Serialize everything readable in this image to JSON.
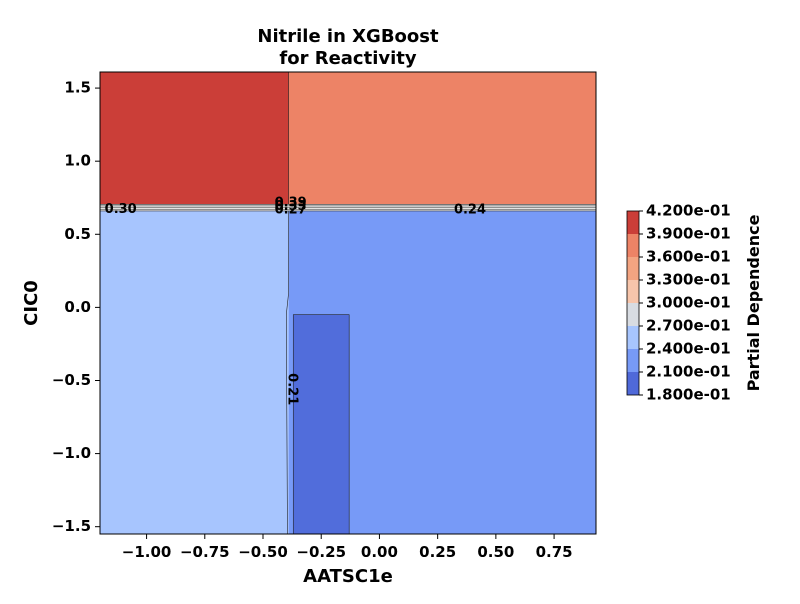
{
  "chart_data": {
    "type": "contour",
    "title_lines": [
      "Nitrile in XGBoost",
      "for Reactivity"
    ],
    "xlabel": "AATSC1e",
    "ylabel": "CIC0",
    "xlim": [
      -1.2,
      0.93
    ],
    "ylim": [
      -1.55,
      1.61
    ],
    "x_ticks": [
      {
        "value": -1.0,
        "label": "−1.00"
      },
      {
        "value": -0.75,
        "label": "−0.75"
      },
      {
        "value": -0.5,
        "label": "−0.50"
      },
      {
        "value": -0.25,
        "label": "−0.25"
      },
      {
        "value": 0.0,
        "label": "0.00"
      },
      {
        "value": 0.25,
        "label": "0.25"
      },
      {
        "value": 0.5,
        "label": "0.50"
      },
      {
        "value": 0.75,
        "label": "0.75"
      }
    ],
    "y_ticks": [
      {
        "value": -1.5,
        "label": "−1.5"
      },
      {
        "value": -1.0,
        "label": "−1.0"
      },
      {
        "value": -0.5,
        "label": "−0.5"
      },
      {
        "value": 0.0,
        "label": "0.0"
      },
      {
        "value": 0.5,
        "label": "0.5"
      },
      {
        "value": 1.0,
        "label": "1.0"
      },
      {
        "value": 1.5,
        "label": "1.5"
      }
    ],
    "regions": [
      {
        "x0": -1.2,
        "x1": -0.39,
        "y0": 0.705,
        "y1": 1.61,
        "value": 0.41,
        "color": "#cb3e38"
      },
      {
        "x0": -0.39,
        "x1": 0.93,
        "y0": 0.705,
        "y1": 1.61,
        "value": 0.36,
        "color": "#ed8366"
      },
      {
        "x0": -1.2,
        "x1": -0.39,
        "y0": -1.55,
        "y1": 0.66,
        "value": 0.27,
        "color": "#a7c5fe"
      },
      {
        "x0": -0.39,
        "x1": 0.93,
        "y0": -1.55,
        "y1": 0.66,
        "value": 0.24,
        "color": "#779af7"
      },
      {
        "x0": -0.37,
        "x1": -0.13,
        "y0": -1.55,
        "y1": -0.05,
        "value": 0.2,
        "color": "#516ddb"
      }
    ],
    "contour_labels": [
      {
        "x": -1.18,
        "y": 0.67,
        "label": "0.30"
      },
      {
        "x": -0.45,
        "y": 0.715,
        "label": "0.39"
      },
      {
        "x": -0.45,
        "y": 0.69,
        "label": "0.33"
      },
      {
        "x": -0.45,
        "y": 0.665,
        "label": "0.27"
      },
      {
        "x": 0.32,
        "y": 0.665,
        "label": "0.24"
      },
      {
        "x": -0.375,
        "y": -0.45,
        "label": "0.21",
        "rotate": 90
      }
    ],
    "colorbar": {
      "label": "Partial Dependence",
      "levels": [
        0.18,
        0.21,
        0.24,
        0.27,
        0.3,
        0.33,
        0.36,
        0.39,
        0.42
      ],
      "tick_labels": [
        "1.800e-01",
        "2.100e-01",
        "2.400e-01",
        "2.700e-01",
        "3.000e-01",
        "3.300e-01",
        "3.600e-01",
        "3.900e-01",
        "4.200e-01"
      ],
      "colors": [
        "#4f69d9",
        "#779af7",
        "#a7c5fe",
        "#d8dce2",
        "#f7c5ab",
        "#f3a481",
        "#ed8366",
        "#cb3e38"
      ]
    }
  }
}
